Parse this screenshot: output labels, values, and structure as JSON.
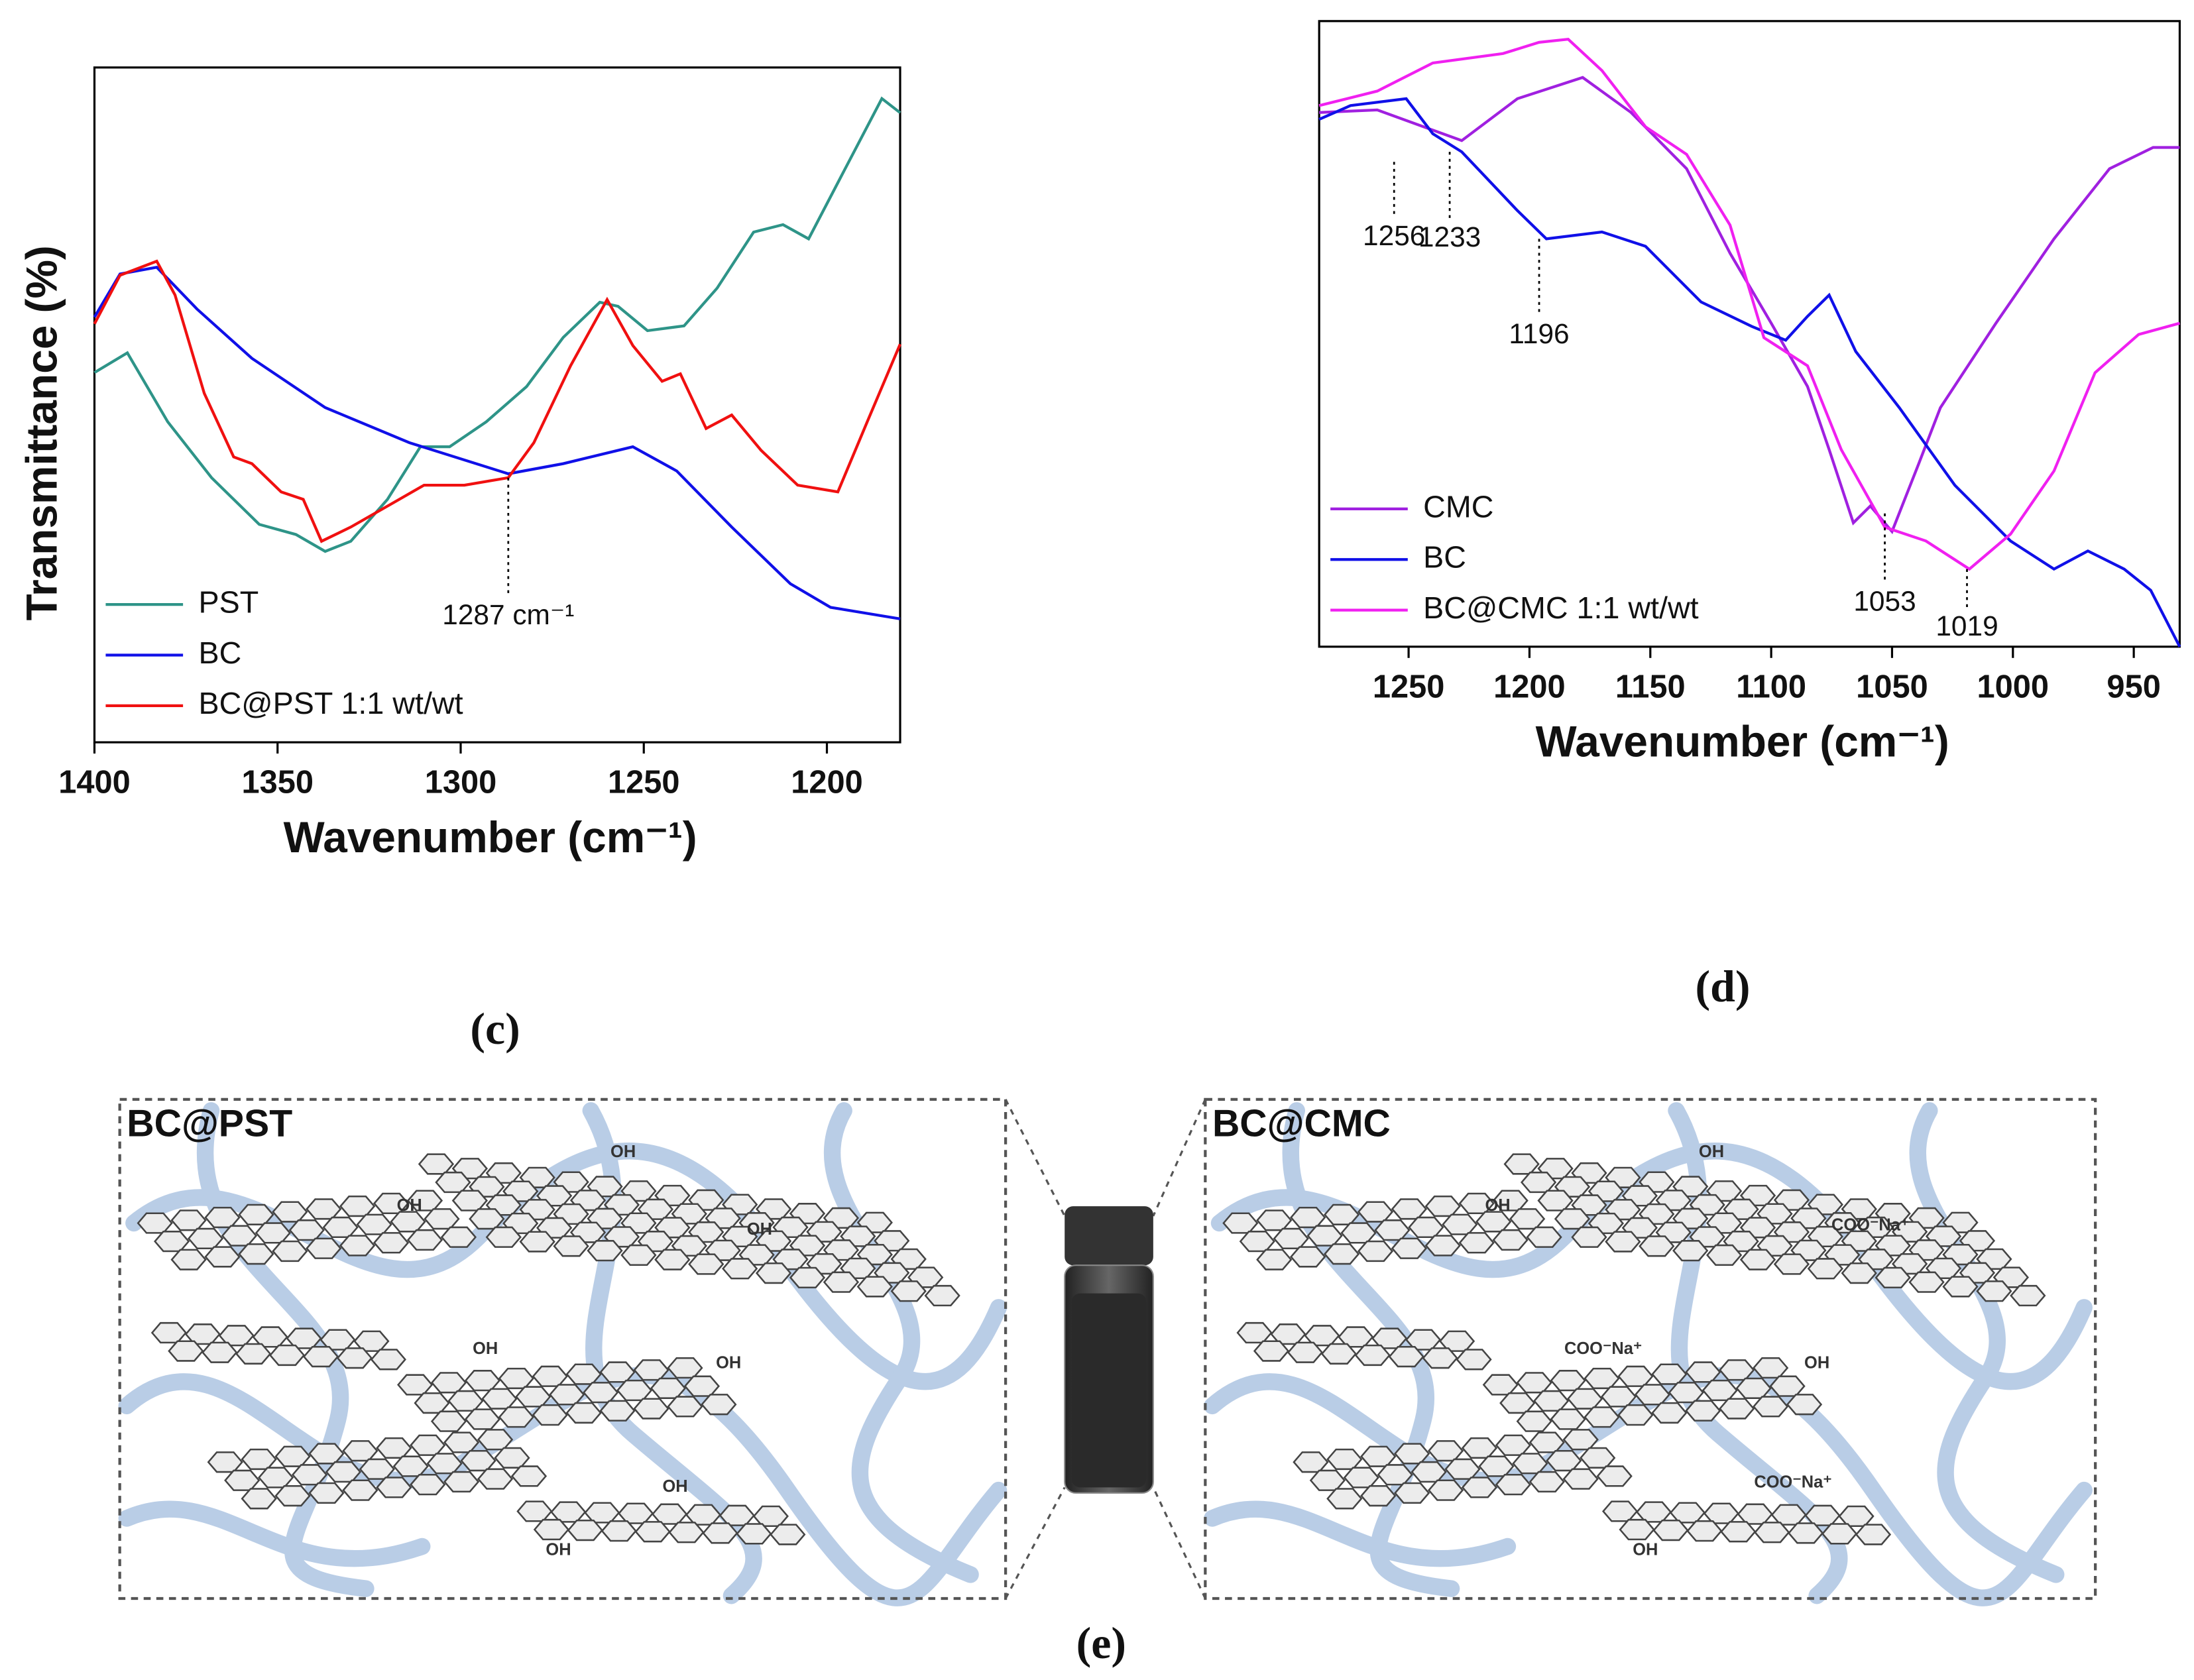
{
  "chart_data": [
    {
      "type": "line",
      "label": "(c)",
      "x_label": "Wavenumber (cm⁻¹)",
      "y_label": "Transmittance (%)",
      "xlim": [
        1400,
        1180
      ],
      "xticks": [
        1400,
        1350,
        1300,
        1250,
        1200
      ],
      "ylim": [
        0,
        100
      ],
      "legend": "lower left",
      "series": [
        {
          "name": "PST",
          "color": "#2e9488",
          "x": [
            1400,
            1391,
            1380,
            1368,
            1355,
            1345,
            1337,
            1330,
            1320,
            1311,
            1303,
            1293,
            1282,
            1272,
            1262,
            1257,
            1249,
            1239,
            1230,
            1220,
            1212,
            1205,
            1195,
            1185,
            1180
          ],
          "values": [
            54.8,
            57.7,
            47.5,
            39.2,
            32.3,
            30.8,
            28.3,
            29.8,
            36,
            43.8,
            43.8,
            47.5,
            52.7,
            60,
            65.2,
            64.6,
            61,
            61.7,
            67.3,
            75.6,
            76.7,
            74.6,
            85,
            95.4,
            93.3
          ]
        },
        {
          "name": "BC",
          "color": "#1010e8",
          "x": [
            1400,
            1393,
            1383,
            1372,
            1357,
            1337,
            1314,
            1287,
            1272,
            1253,
            1241,
            1226,
            1210,
            1199,
            1180
          ],
          "values": [
            63,
            69.4,
            70.4,
            64.2,
            56.9,
            49.6,
            44.4,
            39.8,
            41.3,
            43.8,
            40.2,
            31.9,
            23.5,
            20,
            18.3
          ]
        },
        {
          "name": "BC@PST 1:1 wt/wt",
          "color": "#f01010",
          "x": [
            1400,
            1393,
            1383,
            1378,
            1370,
            1362,
            1357,
            1349,
            1343,
            1338,
            1330,
            1320,
            1310,
            1299,
            1287,
            1280,
            1270,
            1260,
            1253,
            1245,
            1240,
            1233,
            1226,
            1218,
            1208,
            1197,
            1189,
            1180
          ],
          "values": [
            62,
            69.2,
            71.3,
            66.3,
            51.7,
            42.3,
            41.3,
            37.1,
            36,
            29.8,
            31.9,
            35,
            38.1,
            38.1,
            39.2,
            44.4,
            55.8,
            65.6,
            58.8,
            53.5,
            54.6,
            46.5,
            48.5,
            43.3,
            38.1,
            37.1,
            47.5,
            59
          ]
        }
      ],
      "annotations": [
        {
          "text": "1287 cm⁻¹",
          "x": 1287,
          "y": 39.2
        }
      ]
    },
    {
      "type": "line",
      "label": "(d)",
      "x_label": "Wavenumber (cm⁻¹)",
      "xlim": [
        1287,
        931
      ],
      "xticks": [
        1250,
        1200,
        1150,
        1100,
        1050,
        1000,
        950
      ],
      "ylim": [
        0,
        100
      ],
      "legend": "lower left",
      "series": [
        {
          "name": "CMC",
          "color": "#a020e0",
          "x": [
            1287,
            1263,
            1228,
            1205,
            1178,
            1158,
            1135,
            1117,
            1100,
            1085,
            1076,
            1066,
            1059,
            1050,
            1039,
            1030,
            1007,
            983,
            960,
            942,
            931
          ],
          "values": [
            85.4,
            85.8,
            80.9,
            87.6,
            91,
            85.4,
            76.4,
            62.9,
            51.7,
            41.6,
            31.5,
            19.8,
            22.5,
            18.4,
            29.2,
            38.2,
            51.7,
            65.2,
            76.4,
            79.8,
            79.8
          ]
        },
        {
          "name": "BC",
          "color": "#1010e8",
          "x": [
            1287,
            1274,
            1251,
            1240,
            1228,
            1205,
            1193,
            1170,
            1152,
            1129,
            1108,
            1094,
            1085,
            1076,
            1065,
            1047,
            1024,
            1001,
            983,
            969,
            954,
            943,
            931
          ],
          "values": [
            84.3,
            86.5,
            87.6,
            82,
            79.1,
            69.7,
            65.2,
            66.3,
            64,
            55.1,
            51.2,
            49,
            52.8,
            56.2,
            47.2,
            38.2,
            25.8,
            16.9,
            12.4,
            15.3,
            12.4,
            9,
            0
          ]
        },
        {
          "name": "BC@CMC 1:1 wt/wt",
          "color": "#f020f0",
          "x": [
            1287,
            1263,
            1240,
            1211,
            1196,
            1184,
            1170,
            1152,
            1135,
            1117,
            1103,
            1085,
            1071,
            1053,
            1036,
            1018,
            1001,
            983,
            966,
            948,
            931
          ],
          "values": [
            86.5,
            88.8,
            93.3,
            94.8,
            96.6,
            97.1,
            92.1,
            83.1,
            78.7,
            67.4,
            49.4,
            44.9,
            31.5,
            19.1,
            16.9,
            12.4,
            18,
            28.1,
            43.8,
            49.9,
            51.7
          ]
        }
      ],
      "annotations": [
        {
          "x": 1256,
          "y": 77.5
        },
        {
          "x": 1233,
          "y": 79.1
        },
        {
          "x": 1196,
          "y": 65.2
        },
        {
          "x": 1053,
          "y": 21.3
        },
        {
          "x": 1019,
          "y": 12.4
        }
      ]
    }
  ],
  "diagram": {
    "label": "(e)",
    "panels": [
      {
        "title": "BC@PST",
        "labels": [
          "OH",
          "OH",
          "OH",
          "OH",
          "OH",
          "OH",
          "OH"
        ]
      },
      {
        "title": "BC@CMC",
        "labels": [
          "OH",
          "OH",
          "COO⁻Na⁺",
          "COO⁻Na⁺",
          "OH",
          "COO⁻Na⁺",
          "OH"
        ]
      }
    ]
  }
}
